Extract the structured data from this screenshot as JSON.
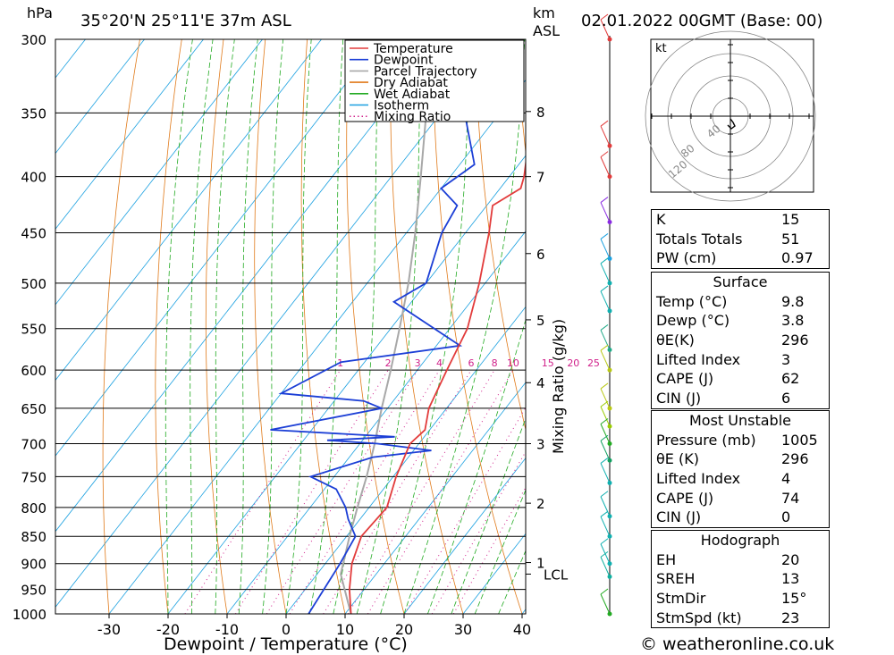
{
  "header": {
    "location": "35°20'N  25°11'E  37m  ASL",
    "datetime": "02.01.2022  00GMT  (Base: 00)",
    "hpa_label": "hPa",
    "km_label": "km",
    "asl_label": "ASL"
  },
  "legend": {
    "items": [
      {
        "label": "Temperature",
        "color": "#e23b3b",
        "style": "solid"
      },
      {
        "label": "Dewpoint",
        "color": "#1c3fd6",
        "style": "solid"
      },
      {
        "label": "Parcel Trajectory",
        "color": "#a8a8a8",
        "style": "solid"
      },
      {
        "label": "Dry Adiabat",
        "color": "#e07a1a",
        "style": "solid"
      },
      {
        "label": "Wet Adiabat",
        "color": "#22aa22",
        "style": "solid"
      },
      {
        "label": "Isotherm",
        "color": "#1aa0e0",
        "style": "solid"
      },
      {
        "label": "Mixing Ratio",
        "color": "#d0208a",
        "style": "dotted"
      }
    ]
  },
  "chart_data": {
    "type": "skew-t",
    "xlabel": "Dewpoint / Temperature (°C)",
    "y_right_label": "Mixing Ratio (g/kg)",
    "pressure_levels": [
      300,
      350,
      400,
      450,
      500,
      550,
      600,
      650,
      700,
      750,
      800,
      850,
      900,
      950,
      1000
    ],
    "temperature_ticks": [
      -30,
      -20,
      -10,
      0,
      10,
      20,
      30,
      40
    ],
    "km_ticks": [
      {
        "label": "8",
        "p": 349
      },
      {
        "label": "7",
        "p": 400
      },
      {
        "label": "6",
        "p": 470
      },
      {
        "label": "5",
        "p": 540
      },
      {
        "label": "4",
        "p": 616
      },
      {
        "label": "3",
        "p": 700
      },
      {
        "label": "2",
        "p": 793
      },
      {
        "label": "1",
        "p": 898
      }
    ],
    "lcl": {
      "label": "LCL",
      "p": 920
    },
    "mixing_ratio_labels": [
      "1",
      "2",
      "3",
      "4",
      "6",
      "8",
      "10",
      "15",
      "20",
      "25"
    ],
    "temperature_profile": [
      {
        "p": 1000,
        "t": 11.0
      },
      {
        "p": 950,
        "t": 7.5
      },
      {
        "p": 900,
        "t": 4.5
      },
      {
        "p": 850,
        "t": 2.5
      },
      {
        "p": 800,
        "t": 3.0
      },
      {
        "p": 750,
        "t": 0.5
      },
      {
        "p": 700,
        "t": -1.5
      },
      {
        "p": 680,
        "t": -0.8
      },
      {
        "p": 650,
        "t": -3.0
      },
      {
        "p": 600,
        "t": -5.0
      },
      {
        "p": 550,
        "t": -7.0
      },
      {
        "p": 500,
        "t": -11.0
      },
      {
        "p": 450,
        "t": -16.0
      },
      {
        "p": 425,
        "t": -19.0
      },
      {
        "p": 410,
        "t": -16.5
      },
      {
        "p": 400,
        "t": -17.5
      },
      {
        "p": 350,
        "t": -24.5
      },
      {
        "p": 320,
        "t": -29.0
      },
      {
        "p": 300,
        "t": -32.0
      }
    ],
    "dewpoint_profile": [
      {
        "p": 1000,
        "t": 3.8
      },
      {
        "p": 900,
        "t": 2.5
      },
      {
        "p": 850,
        "t": 1.5
      },
      {
        "p": 820,
        "t": -2.0
      },
      {
        "p": 800,
        "t": -4.0
      },
      {
        "p": 770,
        "t": -8.0
      },
      {
        "p": 750,
        "t": -14.0
      },
      {
        "p": 720,
        "t": -6.0
      },
      {
        "p": 710,
        "t": 3.0
      },
      {
        "p": 700,
        "t": -7.0
      },
      {
        "p": 695,
        "t": -16.0
      },
      {
        "p": 690,
        "t": -5.0
      },
      {
        "p": 680,
        "t": -27.0
      },
      {
        "p": 650,
        "t": -11.0
      },
      {
        "p": 640,
        "t": -15.0
      },
      {
        "p": 630,
        "t": -30.0
      },
      {
        "p": 590,
        "t": -24.0
      },
      {
        "p": 570,
        "t": -6.0
      },
      {
        "p": 520,
        "t": -23.0
      },
      {
        "p": 500,
        "t": -20.0
      },
      {
        "p": 450,
        "t": -24.0
      },
      {
        "p": 425,
        "t": -25.0
      },
      {
        "p": 410,
        "t": -30.0
      },
      {
        "p": 390,
        "t": -27.5
      },
      {
        "p": 350,
        "t": -36.0
      },
      {
        "p": 320,
        "t": -43.0
      },
      {
        "p": 305,
        "t": -42.0
      },
      {
        "p": 300,
        "t": -43.5
      }
    ],
    "parcel_profile": [
      {
        "p": 1000,
        "t": 11.0
      },
      {
        "p": 920,
        "t": 4.0
      },
      {
        "p": 850,
        "t": 0.5
      },
      {
        "p": 800,
        "t": -2.0
      },
      {
        "p": 750,
        "t": -4.5
      },
      {
        "p": 700,
        "t": -7.5
      },
      {
        "p": 650,
        "t": -11.0
      },
      {
        "p": 600,
        "t": -14.5
      },
      {
        "p": 550,
        "t": -18.5
      },
      {
        "p": 500,
        "t": -23.0
      },
      {
        "p": 450,
        "t": -28.5
      },
      {
        "p": 400,
        "t": -35.0
      },
      {
        "p": 350,
        "t": -42.5
      },
      {
        "p": 310,
        "t": -49.5
      }
    ]
  },
  "hodograph": {
    "unit": "kt",
    "ring_labels": [
      "40",
      "80",
      "120"
    ]
  },
  "indices": {
    "top": [
      {
        "label": "K",
        "value": "15"
      },
      {
        "label": "Totals Totals",
        "value": "51"
      },
      {
        "label": "PW (cm)",
        "value": "0.97"
      }
    ],
    "surface": {
      "title": "Surface",
      "rows": [
        {
          "label": "Temp (°C)",
          "value": "9.8"
        },
        {
          "label": "Dewp (°C)",
          "value": "3.8"
        },
        {
          "label": "θE(K)",
          "value": "296"
        },
        {
          "label": "Lifted Index",
          "value": "3"
        },
        {
          "label": "CAPE (J)",
          "value": "62"
        },
        {
          "label": "CIN (J)",
          "value": "6"
        }
      ]
    },
    "most_unstable": {
      "title": "Most Unstable",
      "rows": [
        {
          "label": "Pressure (mb)",
          "value": "1005"
        },
        {
          "label": "θE (K)",
          "value": "296"
        },
        {
          "label": "Lifted Index",
          "value": "4"
        },
        {
          "label": "CAPE (J)",
          "value": "74"
        },
        {
          "label": "CIN (J)",
          "value": "0"
        }
      ]
    },
    "hodograph_box": {
      "title": "Hodograph",
      "rows": [
        {
          "label": "EH",
          "value": "20"
        },
        {
          "label": "SREH",
          "value": "13"
        },
        {
          "label": "StmDir",
          "value": "15°"
        },
        {
          "label": "StmSpd (kt)",
          "value": "23"
        }
      ]
    }
  },
  "credit": "© weatheronline.co.uk"
}
